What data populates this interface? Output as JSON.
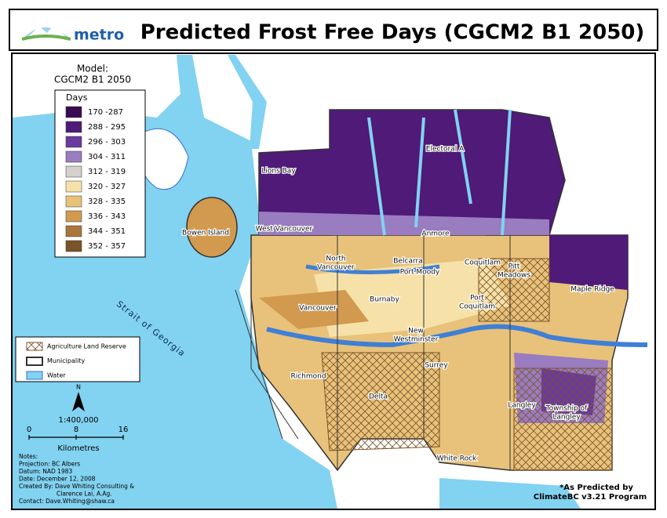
{
  "header": {
    "logo": "metro",
    "title": "Predicted Frost Free Days (CGCM2 B1 2050)"
  },
  "legend": {
    "model_label": "Model:",
    "model": "CGCM2 B1 2050",
    "days_title": "Days",
    "classes": [
      {
        "label": "170 -287",
        "color": "#3b0a55"
      },
      {
        "label": "288 - 295",
        "color": "#4f1a78"
      },
      {
        "label": "296 - 303",
        "color": "#6a3aa0"
      },
      {
        "label": "304 - 311",
        "color": "#9a7cc0"
      },
      {
        "label": "312 - 319",
        "color": "#d6d0cc"
      },
      {
        "label": "320 - 327",
        "color": "#f6e2a8"
      },
      {
        "label": "328 - 335",
        "color": "#e8c27a"
      },
      {
        "label": "336 - 343",
        "color": "#d29a4e"
      },
      {
        "label": "344 - 351",
        "color": "#a9763c"
      },
      {
        "label": "352 - 357",
        "color": "#7a5328"
      }
    ]
  },
  "layers_legend": [
    "Agriculture Land Reserve",
    "Municipality",
    "Water"
  ],
  "scale": {
    "north": "N",
    "ratio": "1:400,000",
    "ticks": [
      "0",
      "8",
      "16"
    ],
    "unit": "Kilometres"
  },
  "notes": [
    "Notes:",
    "Projection: BC Albers",
    "Datum: NAD 1983",
    "Date: December 12, 2008",
    "Created By: Dave Whiting Consulting &",
    "Clarence Lai, A.Ag.",
    "Contact: Dave.Whiting@shaw.ca"
  ],
  "water_label": "Strait of Georgia",
  "places": [
    {
      "lines": [
        "Lions Bay"
      ]
    },
    {
      "lines": [
        "Electoral A"
      ]
    },
    {
      "lines": [
        "Bowen Island"
      ]
    },
    {
      "lines": [
        "West Vancouver"
      ]
    },
    {
      "lines": [
        "North",
        "Vancouver"
      ]
    },
    {
      "lines": [
        "Belcarra"
      ]
    },
    {
      "lines": [
        "Port Moody"
      ]
    },
    {
      "lines": [
        "Anmore"
      ]
    },
    {
      "lines": [
        "Coquitlam"
      ]
    },
    {
      "lines": [
        "Pitt",
        "Meadows"
      ]
    },
    {
      "lines": [
        "Maple Ridge"
      ]
    },
    {
      "lines": [
        "Port",
        "Coquitlam"
      ]
    },
    {
      "lines": [
        "Vancouver"
      ]
    },
    {
      "lines": [
        "Burnaby"
      ]
    },
    {
      "lines": [
        "New",
        "Westminster"
      ]
    },
    {
      "lines": [
        "Surrey"
      ]
    },
    {
      "lines": [
        "Richmond"
      ]
    },
    {
      "lines": [
        "Delta"
      ]
    },
    {
      "lines": [
        "Langley"
      ]
    },
    {
      "lines": [
        "Township of",
        "Langley"
      ]
    },
    {
      "lines": [
        "White Rock"
      ]
    }
  ],
  "credit": [
    "*As Predicted by",
    "ClimateBC v3.21 Program"
  ]
}
